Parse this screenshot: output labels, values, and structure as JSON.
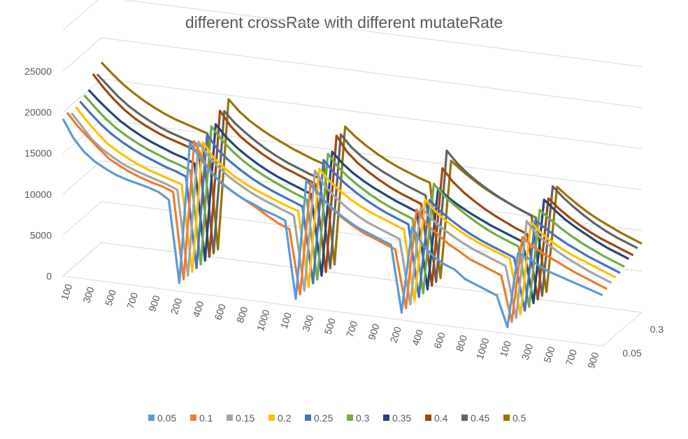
{
  "chart_data": {
    "type": "line",
    "title": "different crossRate with different mutateRate",
    "y_ticks": [
      "0",
      "5000",
      "10000",
      "15000",
      "20000",
      "25000"
    ],
    "ylim": [
      0,
      25000
    ],
    "x_tick_labels": [
      "100",
      "300",
      "500",
      "700",
      "900",
      "200",
      "400",
      "600",
      "800",
      "1000",
      "100",
      "300",
      "500",
      "700",
      "900",
      "200",
      "400",
      "600",
      "800",
      "1000",
      "100",
      "300",
      "500",
      "700",
      "900"
    ],
    "depth_tick_labels": [
      "0.05",
      "0.3"
    ],
    "legend_position": "bottom",
    "grid": true,
    "series": [
      {
        "name": "0.05",
        "color": "#5B9BD5",
        "values": [
          19200,
          17000,
          15500,
          14500,
          13800,
          13200,
          12800,
          12500,
          12200,
          11800,
          11000,
          1000,
          18300,
          16500,
          15000,
          13800,
          13000,
          12300,
          11800,
          11200,
          10800,
          10300,
          900,
          15500,
          14300,
          13000,
          12000,
          11200,
          10500,
          10000,
          9500,
          9000,
          900,
          11500,
          9500,
          8300,
          7500,
          7000,
          6000,
          5500,
          5000,
          4500,
          800,
          10000,
          9500,
          8800,
          8200,
          7800,
          7400,
          7000,
          6600,
          6200
        ]
      },
      {
        "name": "0.1",
        "color": "#ED7D31",
        "values": [
          19500,
          18000,
          16800,
          15600,
          14500,
          13800,
          13200,
          12700,
          12300,
          12000,
          11500,
          1000,
          18000,
          15500,
          14000,
          13000,
          12200,
          11500,
          10800,
          10000,
          9300,
          8800,
          1000,
          14800,
          13200,
          12000,
          11000,
          10200,
          9500,
          9000,
          8500,
          8000,
          1000,
          13200,
          11500,
          10500,
          9500,
          8800,
          8000,
          7500,
          7000,
          6500,
          1000,
          11500,
          10500,
          9800,
          9200,
          8600,
          8000,
          7500,
          7000,
          6500
        ]
      },
      {
        "name": "0.15",
        "color": "#A5A5A5",
        "values": [
          19000,
          17500,
          16000,
          15000,
          14200,
          13500,
          13000,
          12600,
          12200,
          11800,
          11300,
          1000,
          17500,
          15800,
          14600,
          13600,
          12800,
          12100,
          11500,
          11000,
          10500,
          10000,
          1000,
          15800,
          14000,
          12800,
          11800,
          11000,
          10300,
          9800,
          9300,
          8800,
          1000,
          13000,
          11800,
          10800,
          10000,
          9300,
          8700,
          8200,
          7700,
          7200,
          1000,
          13000,
          11500,
          10500,
          9700,
          9000,
          8400,
          7800,
          7300,
          6800
        ]
      },
      {
        "name": "0.2",
        "color": "#FFC000",
        "values": [
          19300,
          17800,
          16500,
          15300,
          14500,
          13800,
          13200,
          12700,
          12300,
          11900,
          11500,
          1000,
          17000,
          15300,
          14200,
          13300,
          12600,
          12000,
          11500,
          11000,
          10500,
          10100,
          1000,
          15600,
          14200,
          13200,
          12300,
          11600,
          11000,
          10500,
          10000,
          9500,
          1000,
          13500,
          12200,
          11200,
          10400,
          9700,
          9100,
          8600,
          8100,
          7600,
          1000,
          12400,
          11200,
          10300,
          9600,
          9000,
          8500,
          8000,
          7500,
          7000
        ]
      },
      {
        "name": "0.25",
        "color": "#4472C4",
        "values": [
          19500,
          18200,
          17000,
          16000,
          15200,
          14500,
          13900,
          13400,
          12900,
          12500,
          12000,
          1000,
          17500,
          15800,
          14700,
          13800,
          13000,
          12300,
          11700,
          11200,
          10700,
          10200,
          1000,
          16200,
          14800,
          13700,
          12800,
          12000,
          11300,
          10700,
          10200,
          9700,
          1000,
          13000,
          11800,
          10900,
          10100,
          9400,
          8800,
          8300,
          7800,
          7300,
          1000,
          12200,
          11300,
          10500,
          9800,
          9200,
          8600,
          8100,
          7600,
          7100
        ]
      },
      {
        "name": "0.3",
        "color": "#70AD47",
        "values": [
          19800,
          18500,
          17300,
          16300,
          15500,
          14800,
          14200,
          13700,
          13200,
          12800,
          12300,
          1000,
          18000,
          16500,
          15300,
          14300,
          13500,
          12800,
          12200,
          11600,
          11100,
          10600,
          1000,
          16500,
          15000,
          13900,
          13000,
          12200,
          11500,
          10900,
          10400,
          9900,
          1000,
          14500,
          13200,
          12200,
          11300,
          10500,
          9800,
          9200,
          8700,
          8200,
          1000,
          13000,
          12000,
          11100,
          10300,
          9600,
          9000,
          8400,
          7900,
          7400
        ]
      },
      {
        "name": "0.35",
        "color": "#264478",
        "values": [
          20000,
          18800,
          17700,
          16700,
          15900,
          15200,
          14600,
          14100,
          13600,
          13200,
          12700,
          1000,
          17800,
          16400,
          15300,
          14400,
          13600,
          12900,
          12300,
          11800,
          11300,
          10800,
          1000,
          16300,
          15000,
          14000,
          13200,
          12500,
          11900,
          11300,
          10800,
          10300,
          1000,
          13500,
          12500,
          11700,
          11000,
          10400,
          9800,
          9300,
          8800,
          8300,
          1000,
          13800,
          12700,
          11700,
          10900,
          10200,
          9500,
          8900,
          8400,
          7900
        ]
      },
      {
        "name": "0.4",
        "color": "#9E480E",
        "values": [
          21500,
          20000,
          18700,
          17600,
          16700,
          16000,
          15400,
          14900,
          14500,
          14100,
          13700,
          1000,
          19000,
          17300,
          16100,
          15200,
          14400,
          13700,
          13100,
          12600,
          12100,
          11600,
          1000,
          17800,
          16000,
          14800,
          13900,
          13100,
          12400,
          11800,
          11300,
          10800,
          1000,
          15500,
          14000,
          12900,
          12000,
          11200,
          10500,
          9900,
          9300,
          8800,
          1000,
          13500,
          12400,
          11500,
          10700,
          10000,
          9400,
          8900,
          8400,
          7900
        ]
      },
      {
        "name": "0.45",
        "color": "#636363",
        "values": [
          21000,
          19800,
          18600,
          17600,
          16800,
          16100,
          15500,
          15000,
          14600,
          14200,
          13800,
          1000,
          18500,
          17200,
          16200,
          15300,
          14500,
          13800,
          13200,
          12700,
          12200,
          11800,
          1000,
          17500,
          16100,
          15100,
          14300,
          13600,
          13000,
          12400,
          11900,
          11400,
          1000,
          17200,
          15800,
          14700,
          13800,
          13000,
          12300,
          11700,
          11100,
          10600,
          1000,
          14500,
          13300,
          12300,
          11400,
          10600,
          9900,
          9300,
          8800,
          8300
        ]
      },
      {
        "name": "0.5",
        "color": "#997300",
        "values": [
          22000,
          20800,
          19700,
          18800,
          18000,
          17300,
          16700,
          16200,
          15800,
          15400,
          15000,
          1000,
          19500,
          18200,
          17200,
          16400,
          15700,
          15100,
          14500,
          14000,
          13500,
          13100,
          1000,
          18000,
          16900,
          16000,
          15200,
          14500,
          13900,
          13400,
          12900,
          12500,
          1000,
          15500,
          14500,
          13600,
          12800,
          12100,
          11500,
          10900,
          10400,
          9900,
          1000,
          14000,
          13000,
          12100,
          11300,
          10600,
          10000,
          9400,
          8900,
          8400
        ]
      }
    ]
  }
}
